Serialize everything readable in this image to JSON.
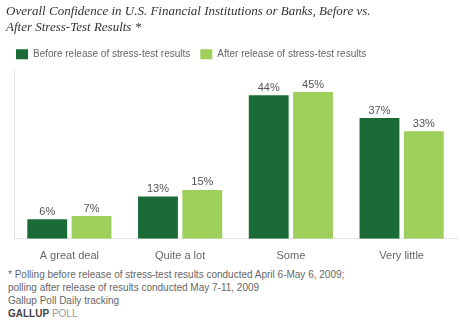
{
  "chart_data": {
    "type": "bar",
    "title": [
      "Overall Confidence in U.S. Financial Institutions or Banks, Before vs.",
      "After Stress-Test Results *"
    ],
    "categories": [
      "A great deal",
      "Quite a lot",
      "Some",
      "Very little"
    ],
    "series": [
      {
        "name": "Before release of stress-test results",
        "color": "#1a6b36",
        "values": [
          6,
          13,
          44,
          37
        ],
        "value_labels": [
          "6%",
          "13%",
          "44%",
          "37%"
        ]
      },
      {
        "name": "After release of stress-test results",
        "color": "#9ecf5a",
        "values": [
          7,
          15,
          45,
          33
        ],
        "value_labels": [
          "7%",
          "15%",
          "45%",
          "33%"
        ]
      }
    ],
    "ylim": [
      0,
      52
    ],
    "grid": false,
    "legend": "top",
    "data_labels": true,
    "tick_labels": "x",
    "annotations": [
      [
        "* Polling before release of stress-test results conducted April 6-May 6, 2009;"
      ],
      [
        "polling after release of results conducted May 7-11, 2009"
      ],
      [
        "Gallup Poll Daily tracking"
      ],
      [
        "GALLUP",
        "POLL"
      ]
    ]
  }
}
